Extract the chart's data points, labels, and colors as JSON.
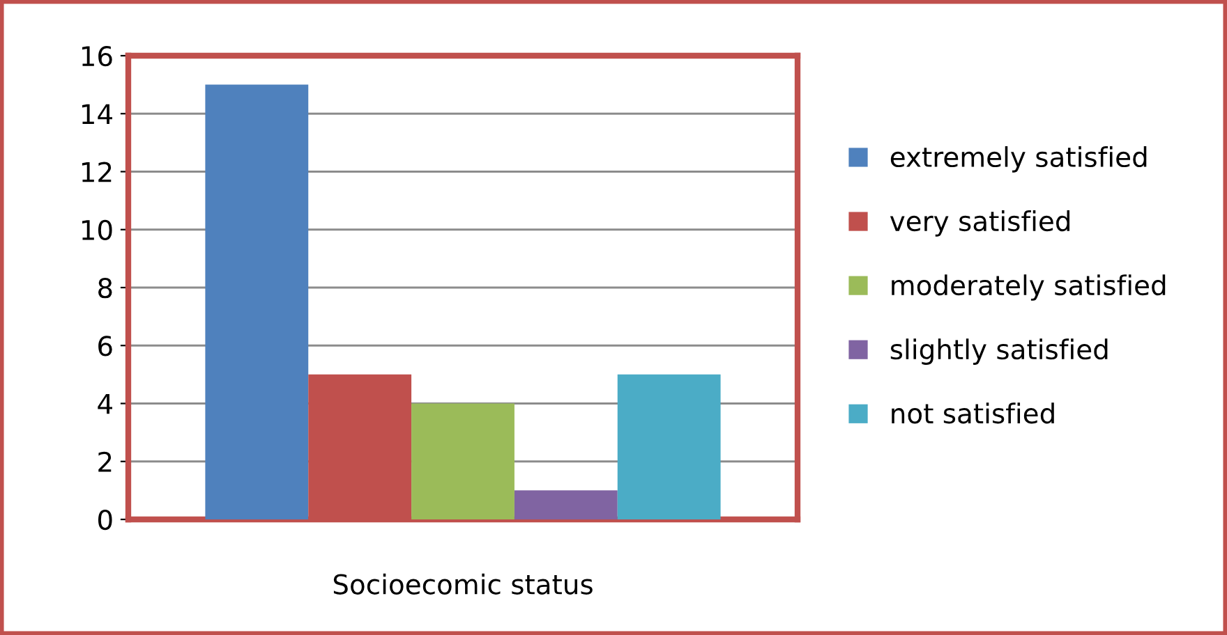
{
  "chart_data": {
    "type": "bar",
    "categories": [
      "Socioecomic status"
    ],
    "series": [
      {
        "name": "extremely satisfied",
        "color": "#4f81bd",
        "values": [
          15
        ]
      },
      {
        "name": "very satisfied",
        "color": "#c0504d",
        "values": [
          5
        ]
      },
      {
        "name": "moderately satisfied",
        "color": "#9bbb59",
        "values": [
          4
        ]
      },
      {
        "name": "slightly satisfied",
        "color": "#8064a2",
        "values": [
          1
        ]
      },
      {
        "name": "not satisfied",
        "color": "#4bacc6",
        "values": [
          5
        ]
      }
    ],
    "ylim": [
      0,
      16
    ],
    "yticks": [
      0,
      2,
      4,
      6,
      8,
      10,
      12,
      14,
      16
    ],
    "grid": "y",
    "legend": "right"
  }
}
